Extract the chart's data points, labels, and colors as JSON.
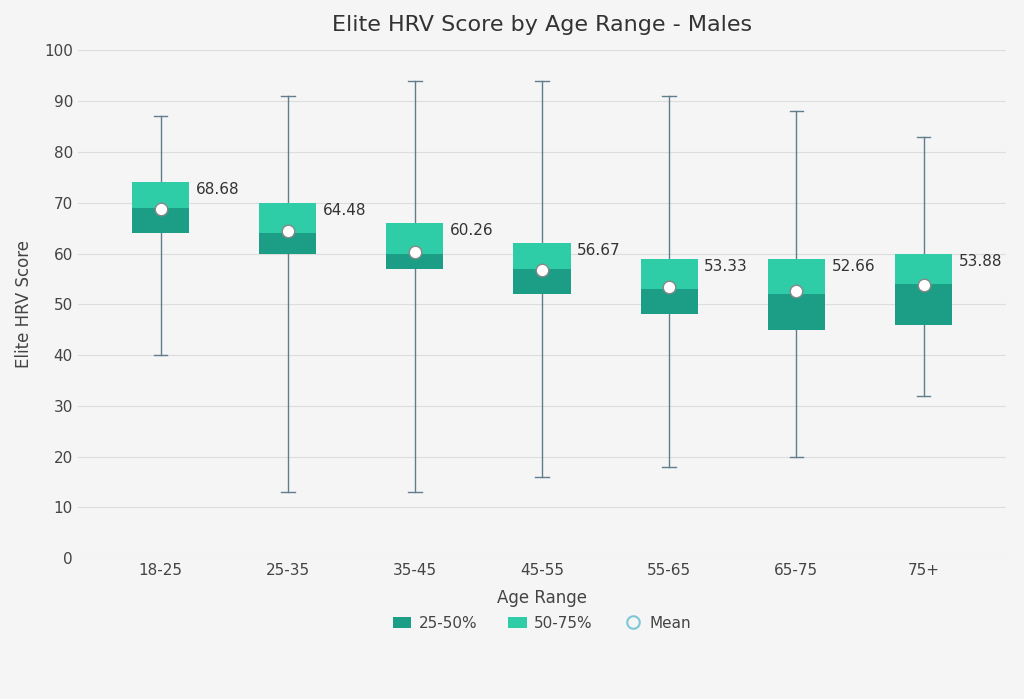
{
  "title": "Elite HRV Score by Age Range - Males",
  "xlabel": "Age Range",
  "ylabel": "Elite HRV Score",
  "categories": [
    "18-25",
    "25-35",
    "35-45",
    "45-55",
    "55-65",
    "65-75",
    "75+"
  ],
  "q1": [
    64,
    60,
    57,
    52,
    48,
    45,
    46
  ],
  "median": [
    69,
    64,
    60,
    57,
    53,
    52,
    54
  ],
  "q3": [
    74,
    70,
    66,
    62,
    59,
    59,
    60
  ],
  "whisker_low": [
    40,
    13,
    13,
    16,
    18,
    20,
    32
  ],
  "whisker_high": [
    87,
    91,
    94,
    94,
    91,
    88,
    83
  ],
  "mean": [
    68.68,
    64.48,
    60.26,
    56.67,
    53.33,
    52.66,
    53.88
  ],
  "color_lower": "#1B9E85",
  "color_upper": "#2ECDA7",
  "whisker_color": "#607D8B",
  "mean_marker_facecolor": "white",
  "mean_marker_edgecolor": "#888888",
  "legend_circle_color": "#7EC8D8",
  "background_color": "#F5F5F5",
  "plot_bg_color": "#F5F5F5",
  "grid_color": "#DDDDDD",
  "ylim": [
    0,
    100
  ],
  "yticks": [
    0,
    10,
    20,
    30,
    40,
    50,
    60,
    70,
    80,
    90,
    100
  ],
  "bar_width": 0.45,
  "title_fontsize": 16,
  "axis_label_fontsize": 12,
  "tick_fontsize": 11,
  "label_fontsize": 11,
  "legend_fontsize": 11
}
